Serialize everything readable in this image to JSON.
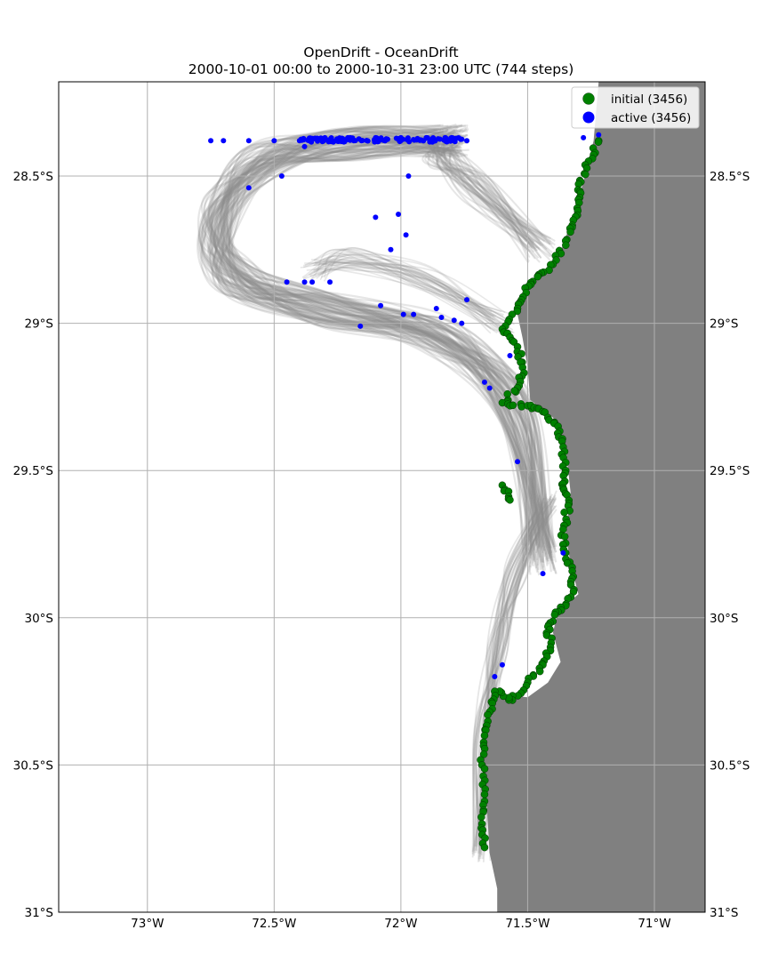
{
  "chart_data": {
    "type": "scatter",
    "title": "OpenDrift - OceanDrift",
    "subtitle": "2000-10-01 00:00 to 2000-10-31 23:00 UTC (744 steps)",
    "xlabel": "",
    "ylabel": "",
    "xlim": [
      -73.35,
      -70.8
    ],
    "ylim": [
      -31.0,
      -28.18
    ],
    "grid": true,
    "legend_position": "top-right",
    "x_ticks": [
      {
        "value": -73.0,
        "label": "73°W"
      },
      {
        "value": -72.5,
        "label": "72.5°W"
      },
      {
        "value": -72.0,
        "label": "72°W"
      },
      {
        "value": -71.5,
        "label": "71.5°W"
      },
      {
        "value": -71.0,
        "label": "71°W"
      }
    ],
    "y_ticks": [
      {
        "value": -28.5,
        "label": "28.5°S"
      },
      {
        "value": -29.0,
        "label": "29°S"
      },
      {
        "value": -29.5,
        "label": "29.5°S"
      },
      {
        "value": -30.0,
        "label": "30°S"
      },
      {
        "value": -30.5,
        "label": "30.5°S"
      },
      {
        "value": -31.0,
        "label": "31°S"
      }
    ],
    "colors": {
      "land": "#808080",
      "trajectory": "#8c8c8c",
      "initial": "#008000",
      "active": "#0000ff",
      "grid": "#b0b0b0"
    },
    "series": [
      {
        "name": "initial (3456)",
        "color": "#008000"
      },
      {
        "name": "active (3456)",
        "color": "#0000ff"
      }
    ],
    "coastline": [
      [
        -71.22,
        -28.18
      ],
      [
        -71.24,
        -28.38
      ],
      [
        -71.28,
        -28.52
      ],
      [
        -71.33,
        -28.66
      ],
      [
        -71.38,
        -28.78
      ],
      [
        -71.48,
        -28.85
      ],
      [
        -71.55,
        -28.93
      ],
      [
        -71.52,
        -29.05
      ],
      [
        -71.5,
        -29.15
      ],
      [
        -71.49,
        -29.26
      ],
      [
        -71.4,
        -29.32
      ],
      [
        -71.35,
        -29.42
      ],
      [
        -71.33,
        -29.58
      ],
      [
        -71.35,
        -29.72
      ],
      [
        -71.33,
        -29.82
      ],
      [
        -71.3,
        -29.92
      ],
      [
        -71.38,
        -29.98
      ],
      [
        -71.4,
        -30.05
      ],
      [
        -71.37,
        -30.15
      ],
      [
        -71.42,
        -30.22
      ],
      [
        -71.5,
        -30.27
      ],
      [
        -71.62,
        -30.26
      ],
      [
        -71.66,
        -30.35
      ],
      [
        -71.68,
        -30.5
      ],
      [
        -71.66,
        -30.65
      ],
      [
        -71.65,
        -30.8
      ],
      [
        -71.62,
        -30.92
      ],
      [
        -71.62,
        -31.0
      ],
      [
        -70.8,
        -31.0
      ],
      [
        -70.8,
        -28.18
      ]
    ],
    "initial_points": [
      [
        -71.22,
        -28.38
      ],
      [
        -71.26,
        -28.45
      ],
      [
        -71.29,
        -28.52
      ],
      [
        -71.3,
        -28.58
      ],
      [
        -71.32,
        -28.65
      ],
      [
        -71.35,
        -28.72
      ],
      [
        -71.4,
        -28.8
      ],
      [
        -71.46,
        -28.84
      ],
      [
        -71.51,
        -28.88
      ],
      [
        -71.54,
        -28.95
      ],
      [
        -71.6,
        -29.02
      ],
      [
        -71.54,
        -29.08
      ],
      [
        -71.52,
        -29.15
      ],
      [
        -71.54,
        -29.22
      ],
      [
        -71.6,
        -29.27
      ],
      [
        -71.5,
        -29.28
      ],
      [
        -71.44,
        -29.3
      ],
      [
        -71.38,
        -29.35
      ],
      [
        -71.36,
        -29.42
      ],
      [
        -71.35,
        -29.5
      ],
      [
        -71.36,
        -29.56
      ],
      [
        -71.34,
        -29.62
      ],
      [
        -71.36,
        -29.7
      ],
      [
        -71.35,
        -29.78
      ],
      [
        -71.32,
        -29.86
      ],
      [
        -71.33,
        -29.93
      ],
      [
        -71.38,
        -29.98
      ],
      [
        -71.42,
        -30.03
      ],
      [
        -71.41,
        -30.1
      ],
      [
        -71.44,
        -30.16
      ],
      [
        -71.5,
        -30.22
      ],
      [
        -71.56,
        -30.28
      ],
      [
        -71.63,
        -30.25
      ],
      [
        -71.65,
        -30.32
      ],
      [
        -71.67,
        -30.4
      ],
      [
        -71.68,
        -30.5
      ],
      [
        -71.67,
        -30.6
      ],
      [
        -71.68,
        -30.7
      ],
      [
        -71.67,
        -30.78
      ],
      [
        -71.6,
        -29.55
      ],
      [
        -71.57,
        -29.6
      ]
    ],
    "active_points": [
      [
        -72.75,
        -28.38
      ],
      [
        -72.7,
        -28.38
      ],
      [
        -72.6,
        -28.38
      ],
      [
        -72.5,
        -28.38
      ],
      [
        -72.4,
        -28.38
      ],
      [
        -72.3,
        -28.37
      ],
      [
        -72.2,
        -28.37
      ],
      [
        -72.1,
        -28.37
      ],
      [
        -72.0,
        -28.37
      ],
      [
        -71.9,
        -28.37
      ],
      [
        -71.8,
        -28.37
      ],
      [
        -71.74,
        -28.38
      ],
      [
        -72.38,
        -28.4
      ],
      [
        -72.6,
        -28.54
      ],
      [
        -72.47,
        -28.5
      ],
      [
        -71.97,
        -28.5
      ],
      [
        -72.1,
        -28.64
      ],
      [
        -72.01,
        -28.63
      ],
      [
        -71.98,
        -28.7
      ],
      [
        -72.04,
        -28.75
      ],
      [
        -72.45,
        -28.86
      ],
      [
        -72.38,
        -28.86
      ],
      [
        -72.35,
        -28.86
      ],
      [
        -72.28,
        -28.86
      ],
      [
        -71.74,
        -28.92
      ],
      [
        -72.08,
        -28.94
      ],
      [
        -71.86,
        -28.95
      ],
      [
        -71.99,
        -28.97
      ],
      [
        -71.95,
        -28.97
      ],
      [
        -71.84,
        -28.98
      ],
      [
        -71.79,
        -28.99
      ],
      [
        -71.76,
        -29.0
      ],
      [
        -72.16,
        -29.01
      ],
      [
        -71.57,
        -29.11
      ],
      [
        -71.67,
        -29.2
      ],
      [
        -71.65,
        -29.22
      ],
      [
        -71.54,
        -29.47
      ],
      [
        -71.44,
        -29.85
      ],
      [
        -71.6,
        -30.16
      ],
      [
        -71.63,
        -30.2
      ],
      [
        -71.22,
        -28.36
      ],
      [
        -71.28,
        -28.37
      ],
      [
        -71.36,
        -29.78
      ]
    ]
  }
}
